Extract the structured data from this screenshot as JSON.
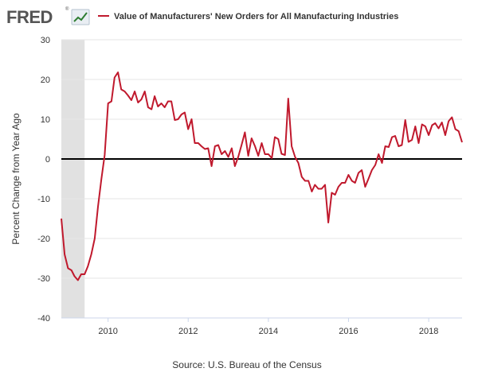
{
  "logo": {
    "text": "FRED",
    "mark": "®"
  },
  "colors": {
    "series": "#c0192d",
    "zero_line": "#000000",
    "recession": "#e1e1e1",
    "grid": "#e6e6e6",
    "text": "#333333"
  },
  "footer": {
    "source": "Source: U.S. Bureau of the Census"
  },
  "chart_data": {
    "type": "line",
    "title": "",
    "ylabel": "Percent Change from Year Ago",
    "xlabel": "",
    "ylim": [
      -40,
      30
    ],
    "xlim": [
      "2008-11-01",
      "2018-11-01"
    ],
    "y_ticks": [
      "30",
      "20",
      "10",
      "0",
      "-10",
      "-20",
      "-30",
      "-40"
    ],
    "y_tick_values": [
      30,
      20,
      10,
      0,
      -10,
      -20,
      -30,
      -40
    ],
    "x_ticks": [
      "2010",
      "2012",
      "2014",
      "2016",
      "2018"
    ],
    "x_tick_dates": [
      "2010-01-01",
      "2012-01-01",
      "2014-01-01",
      "2016-01-01",
      "2018-01-01"
    ],
    "grid": true,
    "reference_line": 0,
    "recession_shading": [
      [
        "2008-11-01",
        "2009-06-01"
      ]
    ],
    "legend": {
      "position": "top",
      "entries": [
        "Value of Manufacturers' New Orders for All Manufacturing Industries"
      ]
    },
    "series": [
      {
        "name": "Value of Manufacturers' New Orders for All Manufacturing Industries",
        "x": [
          "2008-11",
          "2008-12",
          "2009-01",
          "2009-02",
          "2009-03",
          "2009-04",
          "2009-05",
          "2009-06",
          "2009-07",
          "2009-08",
          "2009-09",
          "2009-10",
          "2009-11",
          "2009-12",
          "2010-01",
          "2010-02",
          "2010-03",
          "2010-04",
          "2010-05",
          "2010-06",
          "2010-07",
          "2010-08",
          "2010-09",
          "2010-10",
          "2010-11",
          "2010-12",
          "2011-01",
          "2011-02",
          "2011-03",
          "2011-04",
          "2011-05",
          "2011-06",
          "2011-07",
          "2011-08",
          "2011-09",
          "2011-10",
          "2011-11",
          "2011-12",
          "2012-01",
          "2012-02",
          "2012-03",
          "2012-04",
          "2012-05",
          "2012-06",
          "2012-07",
          "2012-08",
          "2012-09",
          "2012-10",
          "2012-11",
          "2012-12",
          "2013-01",
          "2013-02",
          "2013-03",
          "2013-04",
          "2013-05",
          "2013-06",
          "2013-07",
          "2013-08",
          "2013-09",
          "2013-10",
          "2013-11",
          "2013-12",
          "2014-01",
          "2014-02",
          "2014-03",
          "2014-04",
          "2014-05",
          "2014-06",
          "2014-07",
          "2014-08",
          "2014-09",
          "2014-10",
          "2014-11",
          "2014-12",
          "2015-01",
          "2015-02",
          "2015-03",
          "2015-04",
          "2015-05",
          "2015-06",
          "2015-07",
          "2015-08",
          "2015-09",
          "2015-10",
          "2015-11",
          "2015-12",
          "2016-01",
          "2016-02",
          "2016-03",
          "2016-04",
          "2016-05",
          "2016-06",
          "2016-07",
          "2016-08",
          "2016-09",
          "2016-10",
          "2016-11",
          "2016-12",
          "2017-01",
          "2017-02",
          "2017-03",
          "2017-04",
          "2017-05",
          "2017-06",
          "2017-07",
          "2017-08",
          "2017-09",
          "2017-10",
          "2017-11",
          "2017-12",
          "2018-01",
          "2018-02",
          "2018-03",
          "2018-04",
          "2018-05",
          "2018-06",
          "2018-07",
          "2018-08",
          "2018-09",
          "2018-10",
          "2018-11"
        ],
        "values": [
          -15,
          -24,
          -27.5,
          -28,
          -29.5,
          -30.5,
          -29,
          -29,
          -27,
          -24,
          -20,
          -12,
          -5,
          1,
          14,
          14.5,
          20.5,
          21.8,
          17.5,
          17,
          16,
          14.8,
          17,
          14.2,
          15,
          17,
          13,
          12.5,
          15.8,
          13.2,
          14,
          13,
          14.5,
          14.5,
          9.8,
          10,
          11.2,
          11.7,
          7.5,
          10,
          4,
          4,
          3.2,
          2.5,
          2.7,
          -1.8,
          3.2,
          3.5,
          1.2,
          2,
          0.5,
          2.7,
          -1.8,
          0.5,
          3.5,
          6.7,
          0.8,
          5.2,
          3.2,
          0.8,
          4,
          1.2,
          1.2,
          0.2,
          5.5,
          5,
          1.3,
          1,
          15.2,
          3.2,
          0.5,
          -1,
          -4.5,
          -5.5,
          -5.5,
          -8.2,
          -6.5,
          -7.5,
          -7.5,
          -6.5,
          -16,
          -8.5,
          -9,
          -7,
          -6,
          -6,
          -4,
          -5.5,
          -6,
          -3.5,
          -2.8,
          -7,
          -5,
          -2.8,
          -1.5,
          1.2,
          -1,
          3.2,
          3,
          5.5,
          5.8,
          3.2,
          3.5,
          9.8,
          4.3,
          4.8,
          8.2,
          4,
          8.7,
          8.2,
          6,
          8.5,
          9,
          7.7,
          9.2,
          6,
          9.5,
          10.5,
          7.5,
          7,
          4.2
        ]
      }
    ]
  }
}
